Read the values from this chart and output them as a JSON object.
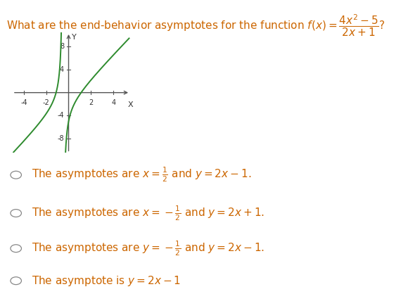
{
  "title_plain": "What are the end-behavior asymptotes for the function ",
  "title_math": "$f\\left(x\\right) = \\dfrac{4x^2-5}{2x+1}$?",
  "title_color": "#cc6600",
  "title_fontsize": 11.0,
  "graph_xlim": [
    -5.0,
    5.5
  ],
  "graph_ylim": [
    -10.5,
    10.5
  ],
  "graph_xticks": [
    -4,
    -2,
    2,
    4
  ],
  "graph_yticks": [
    -8,
    -4,
    4,
    8
  ],
  "graph_color": "#2e8b2e",
  "graph_linewidth": 1.4,
  "axis_color": "#555555",
  "options_plain": [
    "The asymptotes are ",
    "The asymptotes are ",
    "The asymptotes are ",
    "The asymptote is "
  ],
  "options_math": [
    "$x = \\frac{1}{2}$ and $y = 2x - 1$.",
    "$x = -\\frac{1}{2}$ and $y = 2x + 1$.",
    "$y = -\\frac{1}{2}$ and $y = 2x - 1$.",
    "$y = 2x - 1$"
  ],
  "options_var": [
    "x",
    "x",
    "y",
    "y"
  ],
  "option_fontsize": 11.0,
  "text_color": "#cc6600",
  "background_color": "#ffffff"
}
